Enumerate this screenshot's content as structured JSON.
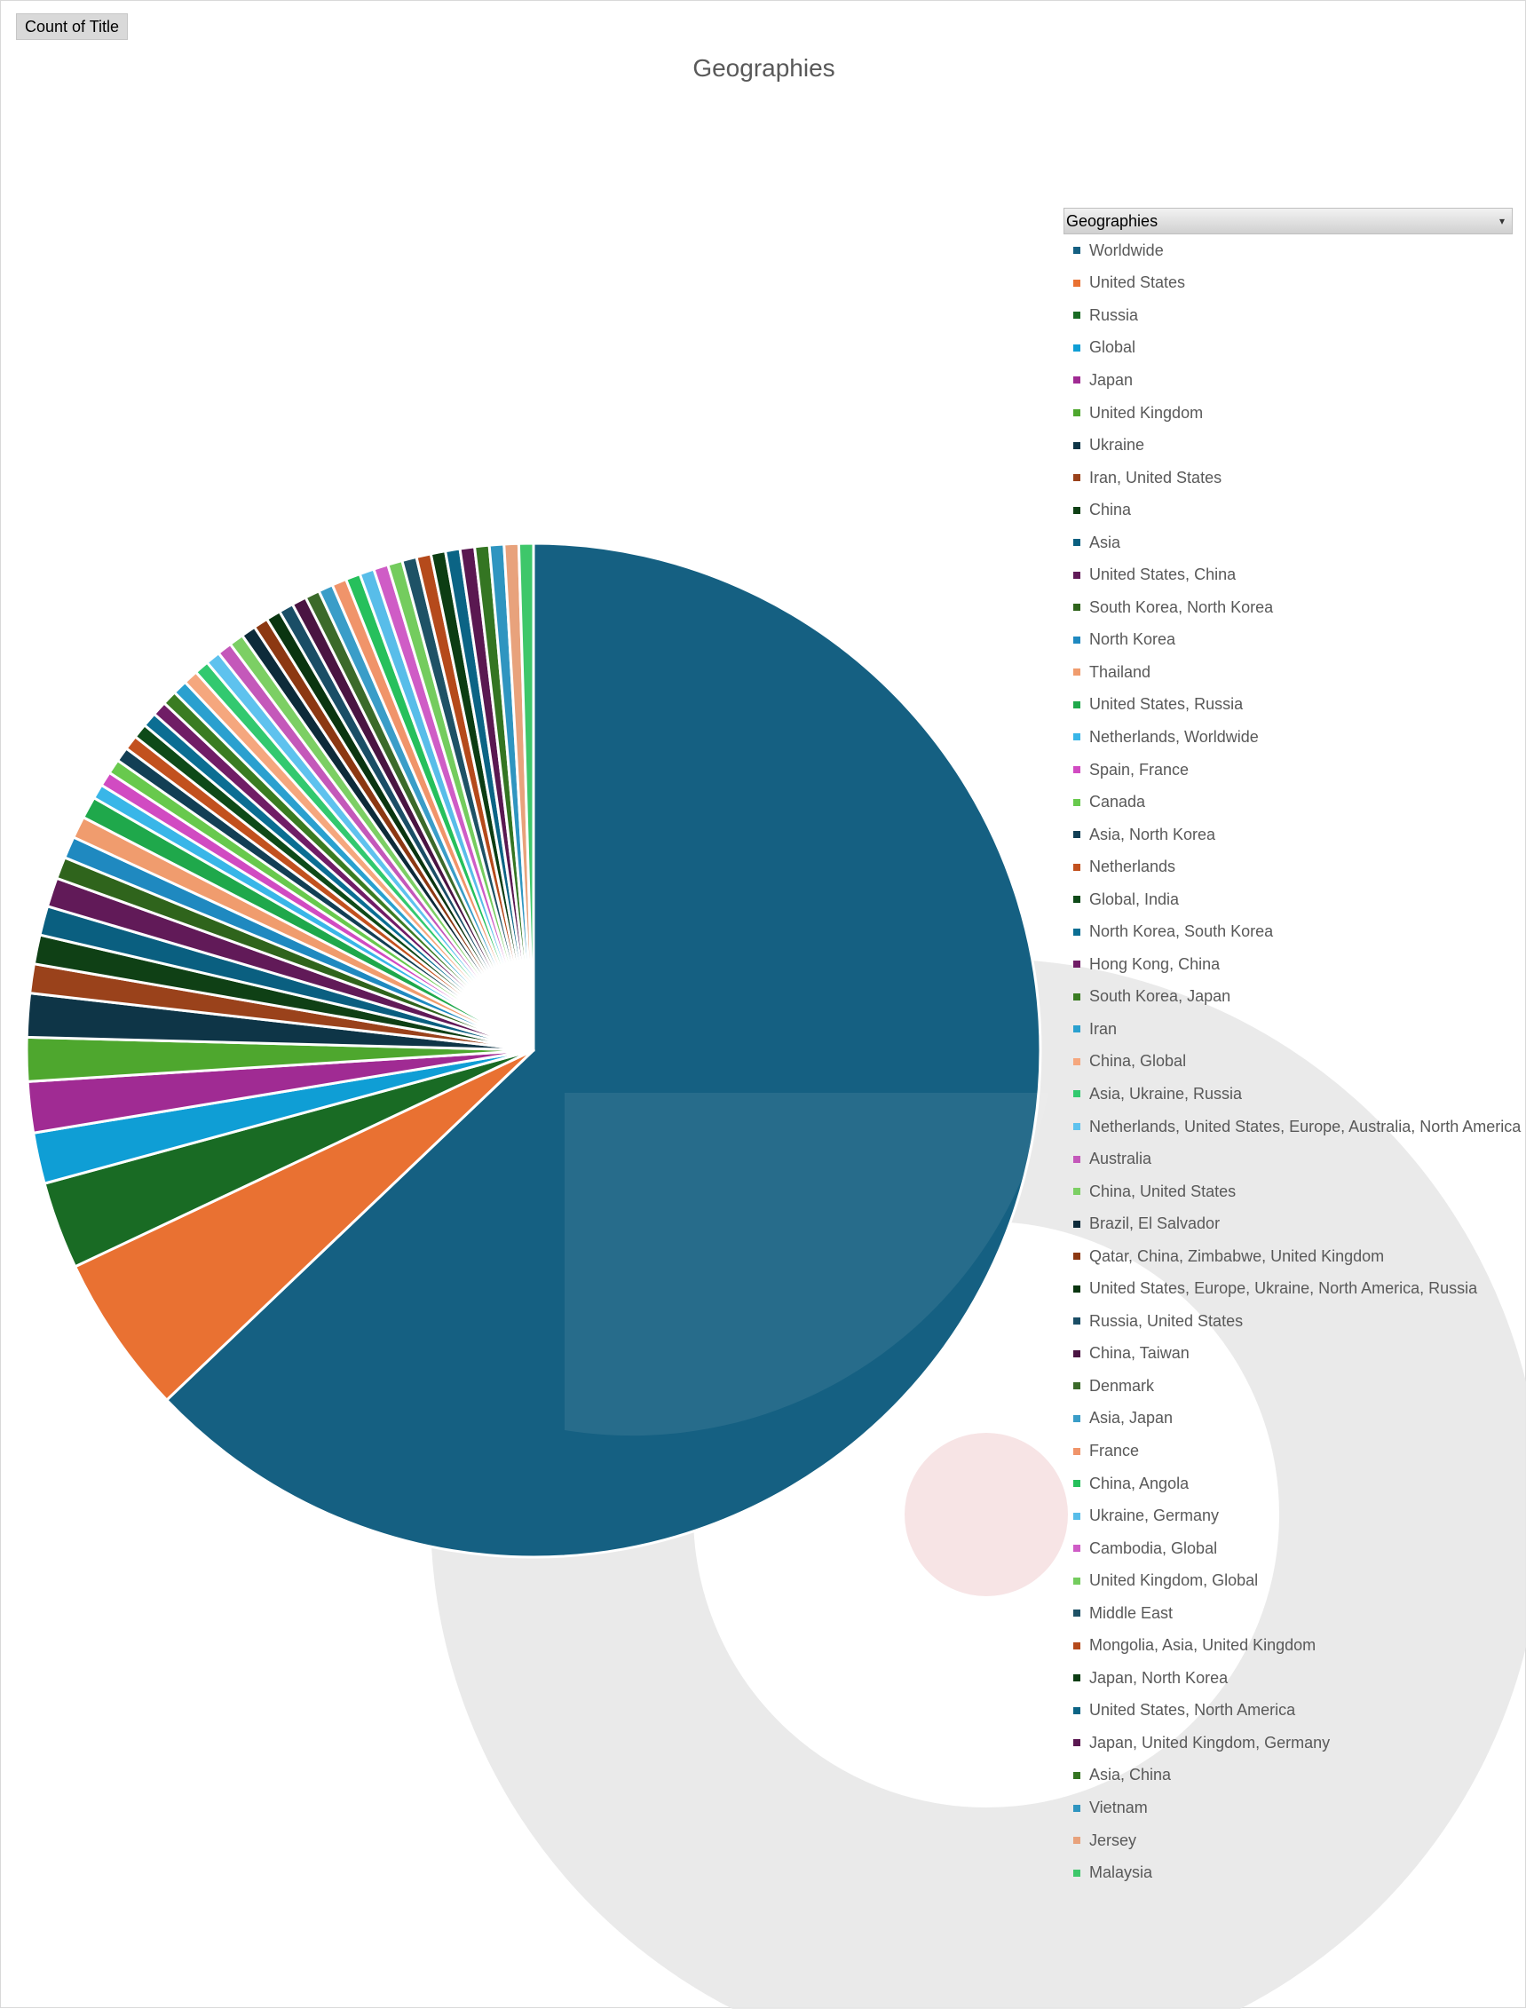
{
  "field_button": {
    "label": "Count of Title"
  },
  "chart_data": {
    "type": "pie",
    "title": "Geographies",
    "legend_title": "Geographies",
    "legend_position": "right",
    "series": [
      {
        "values": [
          271,
          22,
          12,
          7,
          7,
          6,
          6,
          4,
          4,
          4,
          4,
          3,
          3,
          3,
          3,
          2,
          2,
          2,
          2,
          2,
          2,
          2,
          2,
          2,
          2,
          2,
          2,
          2,
          2,
          2,
          2,
          2,
          2,
          2,
          2,
          2,
          2,
          2,
          2,
          2,
          2,
          2,
          2,
          2,
          2,
          2,
          2,
          2,
          2,
          2,
          2
        ]
      }
    ],
    "categories": [
      "Worldwide",
      "United States",
      "Russia",
      "Global",
      "Japan",
      "United Kingdom",
      "Ukraine",
      "Iran, United States",
      "China",
      "Asia",
      "United States, China",
      "South Korea, North Korea",
      "North Korea",
      "Thailand",
      "United States, Russia",
      "Netherlands, Worldwide",
      "Spain, France",
      "Canada",
      "Asia, North Korea",
      "Netherlands",
      "Global, India",
      "North Korea, South Korea",
      "Hong Kong, China",
      "South Korea, Japan",
      "Iran",
      "China, Global",
      "Asia, Ukraine, Russia",
      "Netherlands, United States, Europe, Australia, North America",
      "Australia",
      "China, United States",
      "Brazil, El Salvador",
      "Qatar, China, Zimbabwe, United Kingdom",
      "United States, Europe, Ukraine, North America, Russia",
      "Russia, United States",
      "China, Taiwan",
      "Denmark",
      "Asia, Japan",
      "France",
      "China, Angola",
      "Ukraine, Germany",
      "Cambodia, Global",
      "United Kingdom, Global",
      "Middle East",
      "Mongolia, Asia, United Kingdom",
      "Japan, North Korea",
      "United States, North America",
      "Japan, United Kingdom, Germany",
      "Asia, China",
      "Vietnam",
      "Jersey",
      "Malaysia"
    ],
    "colors": [
      "#156082",
      "#e97132",
      "#196b24",
      "#0f9ed5",
      "#a02b93",
      "#4ea72e",
      "#0e3547",
      "#9a421b",
      "#0f4015",
      "#0a5f80",
      "#611a58",
      "#2f641c",
      "#1f89c0",
      "#f09c6e",
      "#1fa84b",
      "#39b6e8",
      "#d14bc2",
      "#68c94d",
      "#123f55",
      "#c2511e",
      "#0e4a18",
      "#0b6e93",
      "#701d66",
      "#3a7c22",
      "#2aa0cf",
      "#f5a77e",
      "#32c96f",
      "#5ec2ee",
      "#c458ba",
      "#7ccf64",
      "#0d2b3a",
      "#8c3812",
      "#0a3510",
      "#1a4e66",
      "#4a1442",
      "#3b6a2a",
      "#3a9dc8",
      "#f0946a",
      "#26c05c",
      "#58bde9",
      "#cf5cc6",
      "#74cc5e",
      "#1e5266",
      "#b54a1b",
      "#0c3d13",
      "#0b6485",
      "#5a1851",
      "#347522",
      "#2f95c0",
      "#e8a27c",
      "#3ec76a"
    ]
  }
}
